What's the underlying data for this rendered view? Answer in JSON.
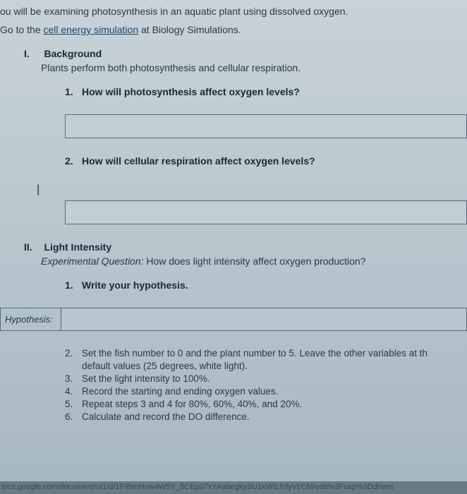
{
  "intro": {
    "line1_pre": "ou will be examining photosynthesis in an aquatic plant using dissolved oxygen.",
    "line2_pre": "Go to the ",
    "link_text": "cell energy simulation",
    "line2_post": " at Biology Simulations."
  },
  "section1": {
    "roman": "I.",
    "title": "Background",
    "subtitle": "Plants perform both photosynthesis and cellular respiration.",
    "q1": {
      "num": "1.",
      "text": "How will photosynthesis affect oxygen levels?"
    },
    "q2": {
      "num": "2.",
      "text": "How will cellular respiration affect oxygen levels?"
    }
  },
  "cursor": "|",
  "section2": {
    "roman": "II.",
    "title": "Light Intensity",
    "exp_label": "Experimental Question:",
    "exp_text": " How does light intensity affect oxygen production?",
    "q1": {
      "num": "1.",
      "text": "Write your hypothesis."
    },
    "hyp_label": "Hypothesis:",
    "steps": [
      {
        "n": "2.",
        "t": "Set the fish number to 0 and the plant number to 5. Leave the other variables at th"
      },
      {
        "n": "",
        "t": "default values (25 degrees, white light)."
      },
      {
        "n": "3.",
        "t": "Set the light intensity to 100%."
      },
      {
        "n": "4.",
        "t": "Record the starting and ending oxygen values."
      },
      {
        "n": "5.",
        "t": "Repeat steps 3 and 4 for 80%, 60%, 40%, and 20%."
      },
      {
        "n": "6.",
        "t": "Calculate and record the DO difference."
      }
    ]
  },
  "url": "locs.google.com/document/u/1/d/1FI8imNow4W5Y_5CEp07xYAabegkySU1kWILfnfyVcCM/edit%3Fusp%3Ddrives",
  "colors": {
    "bg_top": "#c8d2d8",
    "bg_mid": "#b8c6ce",
    "bg_bot": "#a8b8c2",
    "text": "#2a3a42",
    "bold_text": "#1a2a32",
    "border": "#5a6a72",
    "link": "#1a4a6a"
  }
}
